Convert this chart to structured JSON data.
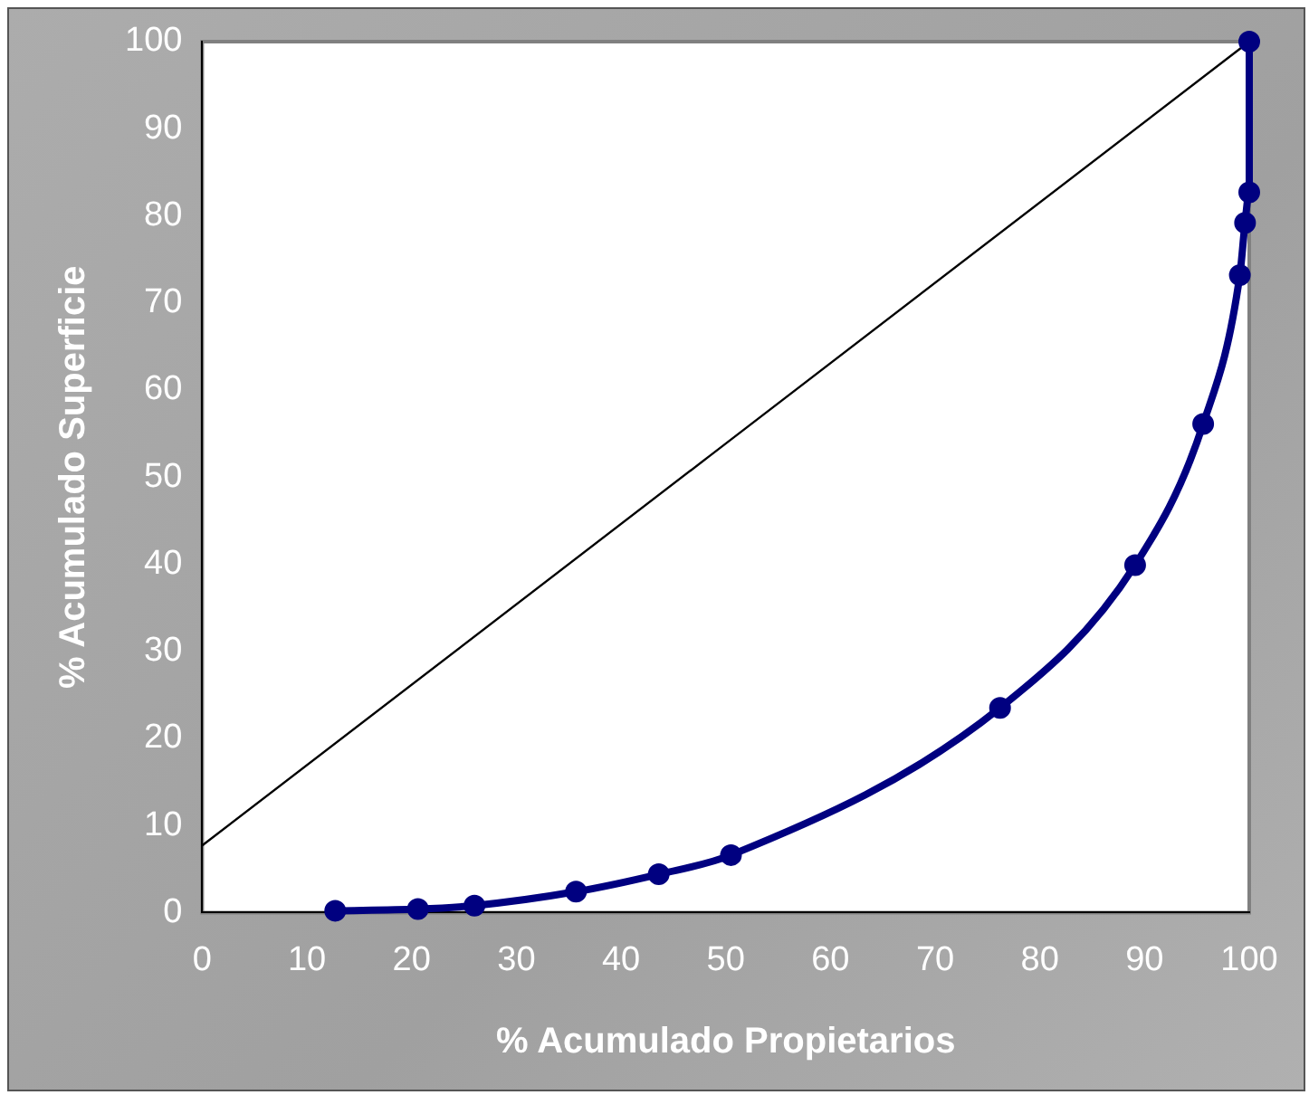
{
  "chart_data": {
    "type": "line",
    "xlabel": "% Acumulado Propietarios",
    "ylabel": "% Acumulado Superficie",
    "xlim": [
      0,
      100
    ],
    "ylim": [
      0,
      100
    ],
    "xticks": [
      0,
      10,
      20,
      30,
      40,
      50,
      60,
      70,
      80,
      90,
      100
    ],
    "yticks": [
      0,
      10,
      20,
      30,
      40,
      50,
      60,
      70,
      80,
      90,
      100
    ],
    "grid": false,
    "legend": false,
    "series": [
      {
        "color": "#000080",
        "marker": "circle",
        "x": [
          12.7,
          20.6,
          26,
          35.7,
          43.6,
          50.5,
          76.2,
          89.1,
          95.6,
          99.1,
          99.6,
          100,
          100
        ],
        "values": [
          0.2,
          0.4,
          0.8,
          2.4,
          4.4,
          6.6,
          23.5,
          39.9,
          56.1,
          73.2,
          79.2,
          82.7,
          100
        ]
      },
      {
        "color": "#000000",
        "marker": "none",
        "x": [
          0,
          100
        ],
        "values": [
          7.7,
          100
        ]
      }
    ]
  }
}
